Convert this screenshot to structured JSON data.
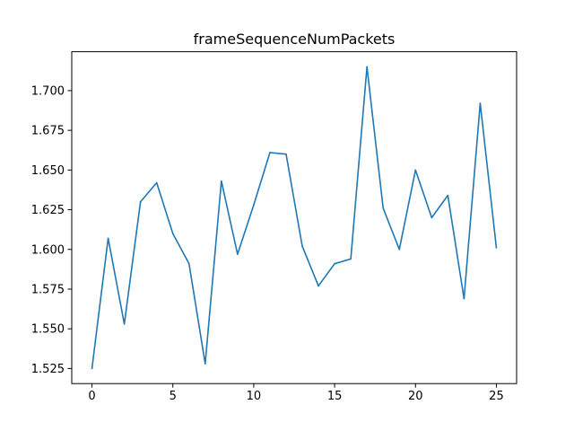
{
  "chart_data": {
    "type": "line",
    "title": "frameSequenceNumPackets",
    "xlabel": "",
    "ylabel": "",
    "xlim": [
      -1.25,
      26.25
    ],
    "ylim": [
      1.5155,
      1.7245
    ],
    "x_ticks": [
      0,
      5,
      10,
      15,
      20,
      25
    ],
    "x_tick_labels": [
      "0",
      "5",
      "10",
      "15",
      "20",
      "25"
    ],
    "y_ticks": [
      1.525,
      1.55,
      1.575,
      1.6,
      1.625,
      1.65,
      1.675,
      1.7
    ],
    "y_tick_labels": [
      "1.525",
      "1.550",
      "1.575",
      "1.600",
      "1.625",
      "1.650",
      "1.675",
      "1.700"
    ],
    "grid": false,
    "line_color": "#1f77b4",
    "series": [
      {
        "x": [
          0,
          1,
          2,
          3,
          4,
          5,
          6,
          7,
          8,
          9,
          10,
          11,
          12,
          13,
          14,
          15,
          16,
          17,
          18,
          19,
          20,
          21,
          22,
          23,
          24,
          25
        ],
        "values": [
          1.525,
          1.607,
          1.553,
          1.63,
          1.642,
          1.61,
          1.591,
          1.528,
          1.643,
          1.597,
          1.628,
          1.661,
          1.66,
          1.602,
          1.577,
          1.591,
          1.594,
          1.715,
          1.626,
          1.6,
          1.65,
          1.62,
          1.634,
          1.569,
          1.692,
          1.601
        ]
      }
    ]
  }
}
